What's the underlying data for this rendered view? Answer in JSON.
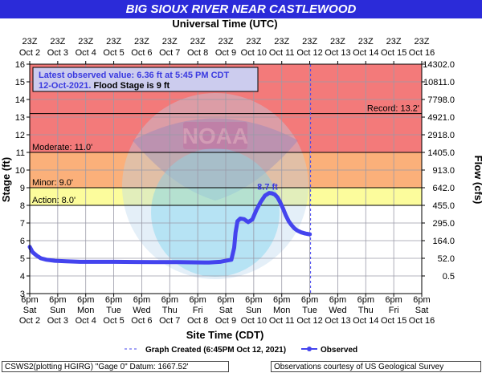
{
  "title": "BIG SIOUX RIVER NEAR CASTLEWOOD",
  "top_axis_title": "Universal Time (UTC)",
  "bottom_axis_title": "Site Time (CDT)",
  "top_ticks": [
    {
      "time": "23Z",
      "date": "Oct  2"
    },
    {
      "time": "23Z",
      "date": "Oct  3"
    },
    {
      "time": "23Z",
      "date": "Oct  4"
    },
    {
      "time": "23Z",
      "date": "Oct  5"
    },
    {
      "time": "23Z",
      "date": "Oct  6"
    },
    {
      "time": "23Z",
      "date": "Oct  7"
    },
    {
      "time": "23Z",
      "date": "Oct  8"
    },
    {
      "time": "23Z",
      "date": "Oct  9"
    },
    {
      "time": "23Z",
      "date": "Oct 10"
    },
    {
      "time": "23Z",
      "date": "Oct 11"
    },
    {
      "time": "23Z",
      "date": "Oct 12"
    },
    {
      "time": "23Z",
      "date": "Oct 13"
    },
    {
      "time": "23Z",
      "date": "Oct 14"
    },
    {
      "time": "23Z",
      "date": "Oct 15"
    },
    {
      "time": "23Z",
      "date": "Oct 16"
    }
  ],
  "bottom_ticks": [
    {
      "time": "6pm",
      "day": "Sat",
      "date": "Oct  2"
    },
    {
      "time": "6pm",
      "day": "Sun",
      "date": "Oct  3"
    },
    {
      "time": "6pm",
      "day": "Mon",
      "date": "Oct  4"
    },
    {
      "time": "6pm",
      "day": "Tue",
      "date": "Oct  5"
    },
    {
      "time": "6pm",
      "day": "Wed",
      "date": "Oct  6"
    },
    {
      "time": "6pm",
      "day": "Thu",
      "date": "Oct  7"
    },
    {
      "time": "6pm",
      "day": "Fri",
      "date": "Oct  8"
    },
    {
      "time": "6pm",
      "day": "Sat",
      "date": "Oct  9"
    },
    {
      "time": "6pm",
      "day": "Sun",
      "date": "Oct 10"
    },
    {
      "time": "6pm",
      "day": "Mon",
      "date": "Oct 11"
    },
    {
      "time": "6pm",
      "day": "Tue",
      "date": "Oct 12"
    },
    {
      "time": "6pm",
      "day": "Wed",
      "date": "Oct 13"
    },
    {
      "time": "6pm",
      "day": "Thu",
      "date": "Oct 14"
    },
    {
      "time": "6pm",
      "day": "Fri",
      "date": "Oct 15"
    },
    {
      "time": "6pm",
      "day": "Sat",
      "date": "Oct 16"
    }
  ],
  "legend": {
    "graph_created": "Graph Created (6:45PM Oct 12, 2021)",
    "observed": "Observed"
  },
  "footer": {
    "left": "CSWS2(plotting HGIRG) \"Gage 0\" Datum: 1667.52'",
    "right": "Observations courtesy of US Geological Survey"
  },
  "colors": {
    "banner": "#2b2bd9",
    "record": "#f37a7a",
    "moderate": "#fbb07a",
    "minor": "#fde07a",
    "action": "#fcfc9c",
    "observed": "#4444ee",
    "grid": "#9a9aa8"
  },
  "chart_data": {
    "type": "line",
    "title": "BIG SIOUX RIVER NEAR CASTLEWOOD",
    "xlabel": "Site Time (CDT)",
    "ylabel": "Stage (ft)",
    "y2label": "Flow (cfs)",
    "ylim": [
      3,
      16
    ],
    "xlim_days": [
      0,
      14
    ],
    "y_ticks": [
      3,
      4,
      5,
      6,
      7,
      8,
      9,
      10,
      11,
      12,
      13,
      14,
      15,
      16
    ],
    "y2_ticks": [
      {
        "stage": 16,
        "label": "14302.0"
      },
      {
        "stage": 15,
        "label": "10811.0"
      },
      {
        "stage": 14,
        "label": "7798.0"
      },
      {
        "stage": 13,
        "label": "4921.0"
      },
      {
        "stage": 12,
        "label": "2918.0"
      },
      {
        "stage": 11,
        "label": "1405.0"
      },
      {
        "stage": 10,
        "label": "913.0"
      },
      {
        "stage": 9,
        "label": "642.0"
      },
      {
        "stage": 8,
        "label": "455.0"
      },
      {
        "stage": 7,
        "label": "295.0"
      },
      {
        "stage": 6,
        "label": "164.0"
      },
      {
        "stage": 5,
        "label": "52.0"
      },
      {
        "stage": 4,
        "label": "0.5"
      }
    ],
    "flood_categories": [
      {
        "name": "Record",
        "label": "Record: 13.2'",
        "stage": 13.2
      },
      {
        "name": "Moderate",
        "label": "Moderate: 11.0'",
        "stage": 11.0
      },
      {
        "name": "Minor",
        "label": "Minor: 9.0'",
        "stage": 9.0
      },
      {
        "name": "Action",
        "label": "Action: 8.0'",
        "stage": 8.0
      }
    ],
    "annotation": {
      "latest_line1": "Latest observed value: 6.36 ft at 5:45 PM CDT",
      "latest_line2_date": "12-Oct-2021.",
      "latest_line2_flood": " Flood Stage is 9 ft",
      "peak_label": "8.7 ft"
    },
    "graph_created_day": 10.03,
    "series": [
      {
        "name": "Observed",
        "x": [
          0.0,
          0.1,
          0.25,
          0.4,
          0.6,
          0.9,
          1.3,
          1.8,
          2.3,
          3.0,
          3.8,
          4.5,
          5.3,
          6.0,
          6.4,
          6.8,
          7.0,
          7.2,
          7.3,
          7.35,
          7.42,
          7.52,
          7.65,
          7.8,
          7.95,
          8.1,
          8.25,
          8.4,
          8.55,
          8.65,
          8.75,
          8.85,
          8.95,
          9.05,
          9.15,
          9.25,
          9.35,
          9.45,
          9.55,
          9.7,
          9.85,
          10.0
        ],
        "y": [
          5.65,
          5.35,
          5.15,
          5.0,
          4.92,
          4.86,
          4.83,
          4.8,
          4.8,
          4.8,
          4.79,
          4.78,
          4.78,
          4.77,
          4.76,
          4.8,
          4.86,
          4.92,
          5.6,
          6.45,
          7.1,
          7.25,
          7.22,
          7.05,
          7.2,
          7.75,
          8.2,
          8.55,
          8.7,
          8.68,
          8.62,
          8.45,
          8.15,
          7.8,
          7.42,
          7.1,
          6.88,
          6.7,
          6.58,
          6.47,
          6.4,
          6.36
        ]
      }
    ]
  }
}
